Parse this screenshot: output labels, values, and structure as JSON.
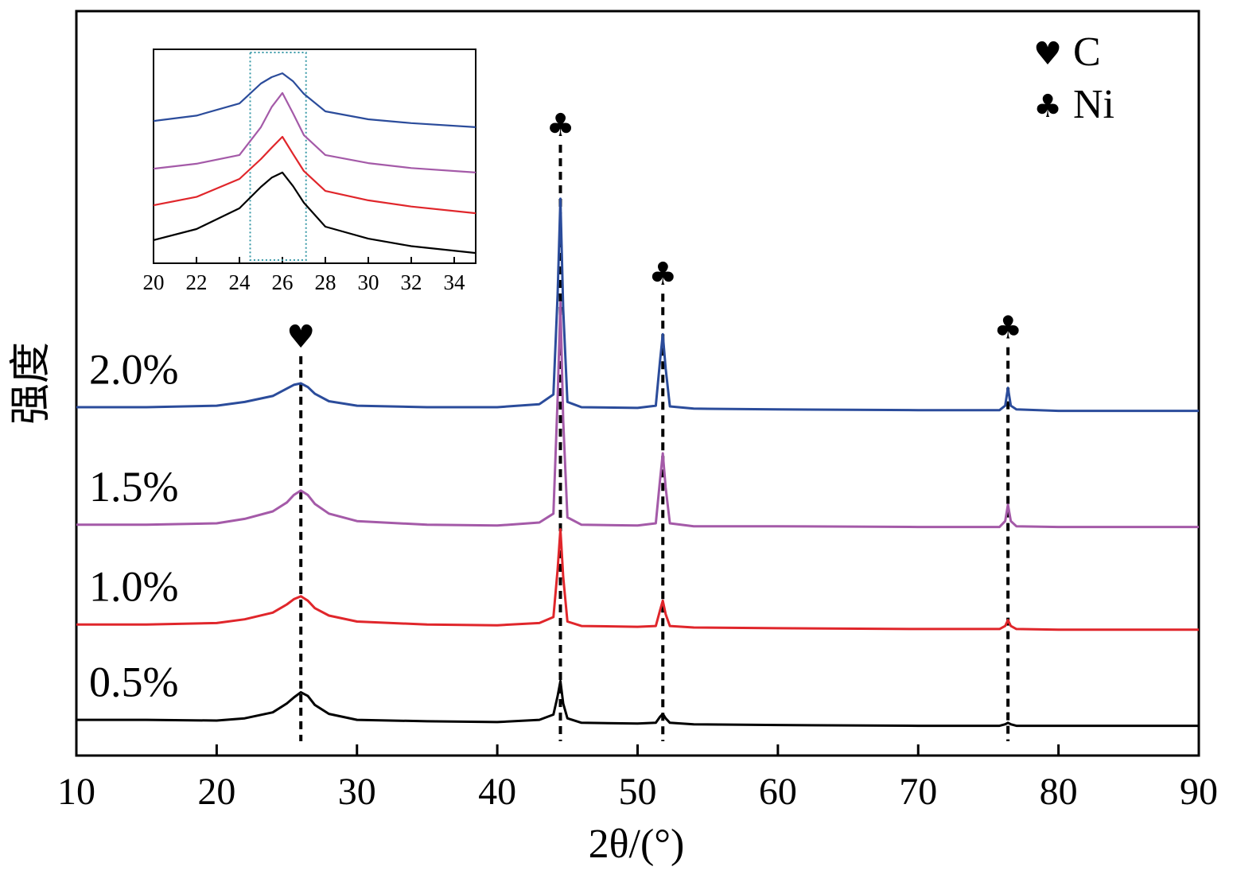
{
  "chart_data": [
    {
      "type": "line",
      "x_label": "2θ/(°)",
      "y_label": "强度",
      "x": [
        10,
        15,
        20,
        22,
        24,
        25,
        25.5,
        26,
        26.5,
        27,
        28,
        30,
        35,
        40,
        43,
        44,
        44.3,
        44.5,
        44.7,
        45,
        46,
        50,
        51.3,
        51.6,
        51.8,
        52,
        52.3,
        54,
        60,
        70,
        75.8,
        76.2,
        76.4,
        76.6,
        77,
        80,
        90
      ],
      "series": [
        {
          "name": "0.5%",
          "color": "#000000",
          "values": [
            4.8,
            4.8,
            4.7,
            5.0,
            5.8,
            7.0,
            7.8,
            8.5,
            8.0,
            6.8,
            5.6,
            4.8,
            4.6,
            4.5,
            4.8,
            5.5,
            8.0,
            10.0,
            7.0,
            5.0,
            4.4,
            4.3,
            4.4,
            5.2,
            5.6,
            5.0,
            4.4,
            4.2,
            4.1,
            4.0,
            4.0,
            4.2,
            4.4,
            4.2,
            4.0,
            4.0,
            4.0
          ]
        },
        {
          "name": "1.0%",
          "color": "#e0262b",
          "values": [
            17.6,
            17.6,
            17.8,
            18.3,
            19.2,
            20.3,
            21.0,
            21.4,
            20.8,
            19.8,
            18.8,
            18.0,
            17.6,
            17.5,
            17.8,
            18.6,
            25.0,
            30.4,
            24.0,
            18.0,
            17.4,
            17.3,
            17.4,
            19.5,
            20.8,
            19.0,
            17.4,
            17.2,
            17.1,
            17.0,
            17.0,
            17.4,
            18.2,
            17.4,
            17.0,
            16.9,
            16.9
          ]
        },
        {
          "name": "1.5%",
          "color": "#a45aa8",
          "values": [
            31.0,
            31.0,
            31.2,
            31.8,
            32.8,
            34.0,
            35.0,
            35.6,
            35.0,
            33.8,
            32.5,
            31.5,
            31.0,
            30.9,
            31.3,
            32.5,
            48.0,
            60.9,
            45.0,
            32.0,
            31.0,
            30.9,
            31.2,
            37.0,
            40.6,
            36.0,
            31.2,
            30.8,
            30.8,
            30.7,
            30.7,
            31.5,
            33.7,
            31.5,
            30.8,
            30.7,
            30.7
          ]
        },
        {
          "name": "2.0%",
          "color": "#2b4c9b",
          "values": [
            46.8,
            46.8,
            47.0,
            47.5,
            48.3,
            49.3,
            49.8,
            50.0,
            49.5,
            48.6,
            47.6,
            47.0,
            46.8,
            46.8,
            47.2,
            48.5,
            62.0,
            74.8,
            60.0,
            47.5,
            46.8,
            46.7,
            47.0,
            53.0,
            56.6,
            52.0,
            46.9,
            46.6,
            46.5,
            46.4,
            46.4,
            47.0,
            49.4,
            47.0,
            46.5,
            46.3,
            46.3
          ]
        }
      ],
      "xlim": [
        10,
        90
      ],
      "xticks": [
        10,
        20,
        30,
        40,
        50,
        60,
        70,
        80,
        90
      ],
      "ylim": [
        0,
        100
      ],
      "markers": [
        {
          "symbol": "♥",
          "x": 26,
          "y": 56
        },
        {
          "symbol": "♣",
          "x": 44.5,
          "y": 84.4
        },
        {
          "symbol": "♣",
          "x": 51.8,
          "y": 64.4
        },
        {
          "symbol": "♣",
          "x": 76.4,
          "y": 57.2
        }
      ],
      "legend": [
        {
          "symbol": "♥",
          "label": "C"
        },
        {
          "symbol": "♣",
          "label": "Ni"
        }
      ],
      "legend_position": "upper right"
    },
    {
      "type": "line",
      "x": [
        20,
        22,
        24,
        25,
        25.5,
        26,
        26.5,
        27,
        28,
        30,
        32,
        35
      ],
      "series": [
        {
          "name": "0.5%",
          "color": "#000000",
          "values": [
            10.8,
            16,
            25.7,
            35.7,
            40,
            42.4,
            36,
            28.3,
            17.1,
            11.5,
            8,
            4.8
          ]
        },
        {
          "name": "1.0%",
          "color": "#e0262b",
          "values": [
            27.1,
            31,
            39.4,
            48.7,
            54,
            59.1,
            51,
            43.1,
            33.8,
            29.4,
            26.5,
            23.4
          ]
        },
        {
          "name": "1.5%",
          "color": "#a45aa8",
          "values": [
            44.2,
            46.5,
            50.6,
            63.6,
            73,
            79.6,
            70,
            59.9,
            50.6,
            46.8,
            44.5,
            42.4
          ]
        },
        {
          "name": "2.0%",
          "color": "#2b4c9b",
          "values": [
            66.5,
            69,
            74.7,
            84.0,
            87,
            88.8,
            85,
            79.2,
            71,
            67.3,
            65.5,
            63.6
          ]
        }
      ],
      "xlim": [
        20,
        35
      ],
      "xticks": [
        20,
        22,
        24,
        26,
        28,
        30,
        32,
        34
      ],
      "ylim": [
        0,
        100
      ],
      "highlight_x": [
        24.5,
        27.1
      ]
    }
  ]
}
